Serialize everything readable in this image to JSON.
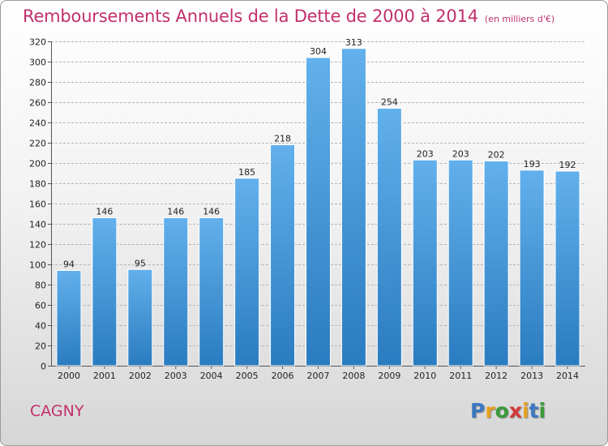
{
  "header": {
    "title": "Remboursements Annuels de la Dette de 2000 à 2014",
    "subtitle": "(en milliers d'€)"
  },
  "footer": {
    "city": "CAGNY",
    "logo": {
      "letters": [
        "P",
        "r",
        "o",
        "x",
        "i",
        "t",
        "i"
      ],
      "colors": [
        "#3b78c2",
        "#e8a020",
        "#3b9a3b",
        "#d43a3a",
        "#e8a020",
        "#3b78c2",
        "#3b9a3b"
      ]
    }
  },
  "colors": {
    "bar_light": "#62b0ec",
    "bar_dark": "#2a7cc0",
    "grid": "#b5b5b5",
    "axis": "#555555"
  },
  "chart_data": {
    "type": "bar",
    "title": "Remboursements Annuels de la Dette de 2000 à 2014",
    "subtitle": "(en milliers d'€)",
    "categories": [
      "2000",
      "2001",
      "2002",
      "2003",
      "2004",
      "2005",
      "2006",
      "2007",
      "2008",
      "2009",
      "2010",
      "2011",
      "2012",
      "2013",
      "2014"
    ],
    "values": [
      94,
      146,
      95,
      146,
      146,
      185,
      218,
      304,
      313,
      254,
      203,
      203,
      202,
      193,
      192
    ],
    "ylim": [
      0,
      320
    ],
    "yticks": [
      0,
      20,
      40,
      60,
      80,
      100,
      120,
      140,
      160,
      180,
      200,
      220,
      240,
      260,
      280,
      300,
      320
    ],
    "grid": true,
    "legend": "none"
  }
}
